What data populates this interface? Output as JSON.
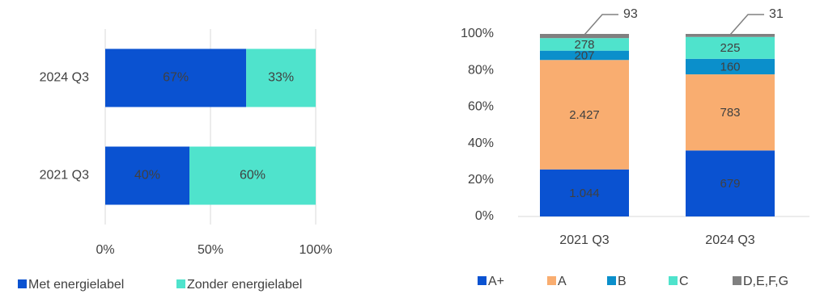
{
  "chart_data": [
    {
      "type": "bar",
      "orientation": "horizontal",
      "stacked": true,
      "categories": [
        "2024 Q3",
        "2021 Q3"
      ],
      "series": [
        {
          "name": "Met energielabel",
          "color": "#0a52d1",
          "values": [
            67,
            40
          ],
          "value_labels": [
            "67%",
            "40%"
          ]
        },
        {
          "name": "Zonder energielabel",
          "color": "#4fe3cc",
          "values": [
            33,
            60
          ],
          "value_labels": [
            "33%",
            "60%"
          ]
        }
      ],
      "xlim": [
        0,
        100
      ],
      "xticks": [
        {
          "value": 0,
          "label": "0%"
        },
        {
          "value": 50,
          "label": "50%"
        },
        {
          "value": 100,
          "label": "100%"
        }
      ],
      "grid": true,
      "legend": "bottom"
    },
    {
      "type": "bar",
      "orientation": "vertical",
      "stacked": "percent",
      "categories": [
        "2021 Q3",
        "2024 Q3"
      ],
      "series": [
        {
          "name": "A+",
          "color": "#0a52d1",
          "values": [
            1044,
            679
          ],
          "value_labels": [
            "1.044",
            "679"
          ]
        },
        {
          "name": "A",
          "color": "#f9ad70",
          "values": [
            2427,
            783
          ],
          "value_labels": [
            "2.427",
            "783"
          ]
        },
        {
          "name": "B",
          "color": "#0b8fcb",
          "values": [
            207,
            160
          ]
        },
        {
          "name": "C",
          "color": "#4fe3cc",
          "values": [
            278,
            225
          ]
        },
        {
          "name": "D,E,F,G",
          "color": "#808080",
          "values": [
            93,
            31
          ]
        }
      ],
      "ylim": [
        0,
        100
      ],
      "yticks": [
        {
          "value": 0,
          "label": "0%"
        },
        {
          "value": 20,
          "label": "20%"
        },
        {
          "value": 40,
          "label": "40%"
        },
        {
          "value": 60,
          "label": "60%"
        },
        {
          "value": 80,
          "label": "80%"
        },
        {
          "value": 100,
          "label": "100%"
        }
      ],
      "legend": "bottom"
    }
  ]
}
